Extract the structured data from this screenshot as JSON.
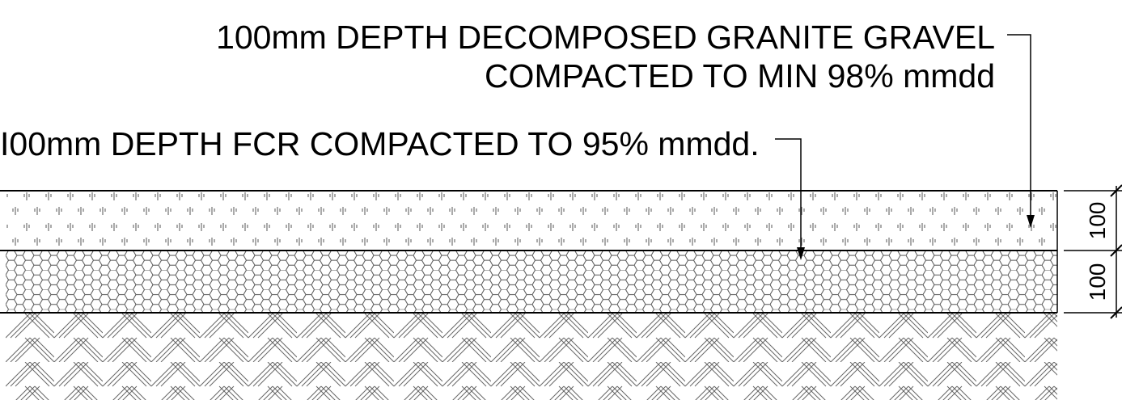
{
  "notes": {
    "granite_line1": "100mm DEPTH DECOMPOSED GRANITE GRAVEL",
    "granite_line2": "COMPACTED TO MIN 98% mmdd",
    "fcr": "I00mm DEPTH FCR COMPACTED TO 95% mmdd."
  },
  "dimensions": {
    "upper": "100",
    "lower": "100"
  },
  "layers": [
    "decomposed-granite-gravel",
    "fcr-base",
    "subgrade"
  ],
  "colors": {
    "line": "#000000",
    "hatch": "#555555",
    "background": "#ffffff"
  }
}
